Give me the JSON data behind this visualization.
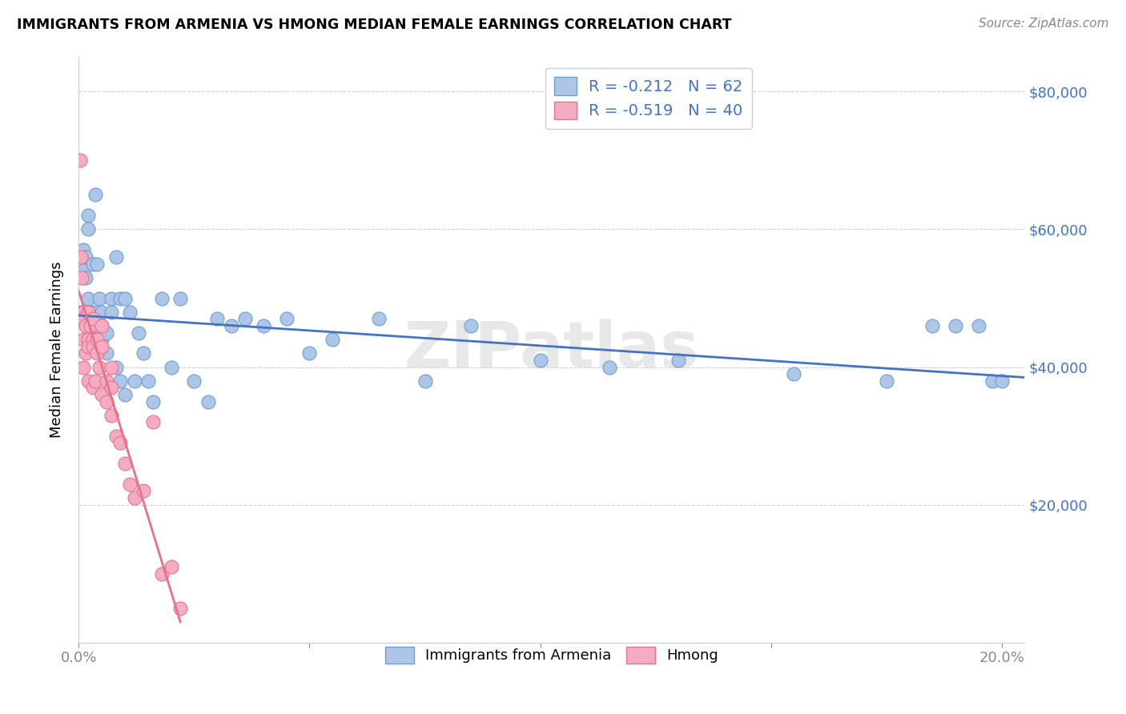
{
  "title": "IMMIGRANTS FROM ARMENIA VS HMONG MEDIAN FEMALE EARNINGS CORRELATION CHART",
  "source": "Source: ZipAtlas.com",
  "ylabel": "Median Female Earnings",
  "xlim": [
    0.0,
    0.205
  ],
  "ylim": [
    0,
    85000
  ],
  "yticks": [
    0,
    20000,
    40000,
    60000,
    80000
  ],
  "ytick_labels_right": [
    "",
    "$20,000",
    "$40,000",
    "$60,000",
    "$80,000"
  ],
  "xticks": [
    0.0,
    0.05,
    0.1,
    0.15,
    0.2
  ],
  "xtick_labels": [
    "0.0%",
    "",
    "",
    "",
    "20.0%"
  ],
  "legend_labels": [
    "Immigrants from Armenia",
    "Hmong"
  ],
  "armenia_R": -0.212,
  "armenia_N": 62,
  "hmong_R": -0.519,
  "hmong_N": 40,
  "armenia_color": "#adc6e8",
  "hmong_color": "#f4adc0",
  "armenia_edge_color": "#6a9fd0",
  "hmong_edge_color": "#e87090",
  "armenia_line_color": "#4472c4",
  "hmong_line_color": "#e8708a",
  "label_color": "#4472c4",
  "background_color": "#ffffff",
  "grid_color": "#d0d0d0",
  "watermark": "ZIPatlas",
  "armenia_scatter_x": [
    0.0005,
    0.001,
    0.001,
    0.0015,
    0.0015,
    0.002,
    0.002,
    0.002,
    0.002,
    0.0025,
    0.003,
    0.003,
    0.003,
    0.0035,
    0.004,
    0.004,
    0.004,
    0.0045,
    0.005,
    0.005,
    0.005,
    0.006,
    0.006,
    0.007,
    0.007,
    0.008,
    0.008,
    0.009,
    0.009,
    0.01,
    0.01,
    0.011,
    0.012,
    0.013,
    0.014,
    0.015,
    0.016,
    0.018,
    0.02,
    0.022,
    0.025,
    0.028,
    0.03,
    0.033,
    0.036,
    0.04,
    0.045,
    0.05,
    0.055,
    0.065,
    0.075,
    0.085,
    0.1,
    0.115,
    0.13,
    0.155,
    0.175,
    0.185,
    0.19,
    0.195,
    0.198,
    0.2
  ],
  "armenia_scatter_y": [
    48000,
    57000,
    54000,
    56000,
    53000,
    50000,
    62000,
    60000,
    48000,
    46000,
    44000,
    55000,
    48000,
    65000,
    46000,
    55000,
    48000,
    50000,
    48000,
    46000,
    44000,
    45000,
    42000,
    50000,
    48000,
    56000,
    40000,
    50000,
    38000,
    50000,
    36000,
    48000,
    38000,
    45000,
    42000,
    38000,
    35000,
    50000,
    40000,
    50000,
    38000,
    35000,
    47000,
    46000,
    47000,
    46000,
    47000,
    42000,
    44000,
    47000,
    38000,
    46000,
    41000,
    40000,
    41000,
    39000,
    38000,
    46000,
    46000,
    46000,
    38000,
    38000
  ],
  "hmong_scatter_x": [
    0.0003,
    0.0005,
    0.0007,
    0.001,
    0.001,
    0.001,
    0.001,
    0.0015,
    0.0015,
    0.002,
    0.002,
    0.002,
    0.002,
    0.0025,
    0.003,
    0.003,
    0.003,
    0.003,
    0.0035,
    0.004,
    0.004,
    0.0045,
    0.005,
    0.005,
    0.005,
    0.006,
    0.006,
    0.007,
    0.007,
    0.007,
    0.008,
    0.009,
    0.01,
    0.011,
    0.012,
    0.014,
    0.016,
    0.018,
    0.02,
    0.022
  ],
  "hmong_scatter_y": [
    70000,
    56000,
    53000,
    48000,
    47000,
    44000,
    40000,
    46000,
    42000,
    48000,
    44000,
    43000,
    38000,
    46000,
    47000,
    44000,
    43000,
    37000,
    38000,
    44000,
    42000,
    40000,
    46000,
    43000,
    36000,
    38000,
    35000,
    40000,
    37000,
    33000,
    30000,
    29000,
    26000,
    23000,
    21000,
    22000,
    32000,
    10000,
    11000,
    5000
  ],
  "armenia_trend_x": [
    0.0,
    0.205
  ],
  "armenia_trend_y": [
    47500,
    38500
  ],
  "hmong_trend_x": [
    0.0,
    0.022
  ],
  "hmong_trend_y": [
    51000,
    3000
  ]
}
